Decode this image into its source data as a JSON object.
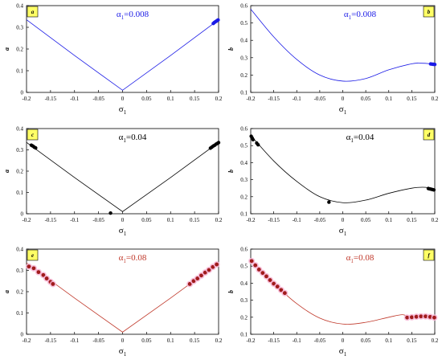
{
  "chart_data": [
    {
      "panel": "a",
      "type": "scatter",
      "annotation": {
        "symbol": "α",
        "sub": "1",
        "text": "=0.008"
      },
      "xlabel": {
        "symbol": "σ",
        "sub": "1"
      },
      "ylabel": "a",
      "xlim": [
        -0.2,
        0.2
      ],
      "ylim": [
        0,
        0.4
      ],
      "xticks": [
        -0.2,
        -0.15,
        -0.1,
        -0.05,
        0,
        0.05,
        0.1,
        0.15,
        0.2
      ],
      "yticks": [
        0,
        0.1,
        0.2,
        0.3,
        0.4
      ],
      "color": "#1a1ae6",
      "curve": {
        "x": [
          -0.2,
          -0.1,
          0,
          0.1,
          0.2
        ],
        "y": [
          0.335,
          0.17,
          0.01,
          0.17,
          0.335
        ]
      },
      "points": [
        {
          "x": 0.189,
          "y": 0.318
        },
        {
          "x": 0.191,
          "y": 0.322
        },
        {
          "x": 0.193,
          "y": 0.325
        },
        {
          "x": 0.195,
          "y": 0.328
        },
        {
          "x": 0.197,
          "y": 0.331
        },
        {
          "x": 0.199,
          "y": 0.334
        }
      ]
    },
    {
      "panel": "b",
      "type": "scatter",
      "annotation": {
        "symbol": "α",
        "sub": "1",
        "text": "=0.008"
      },
      "xlabel": {
        "symbol": "σ",
        "sub": "1"
      },
      "ylabel": "b",
      "xlim": [
        -0.2,
        0.2
      ],
      "ylim": [
        0.1,
        0.6
      ],
      "xticks": [
        -0.2,
        -0.15,
        -0.1,
        -0.05,
        0,
        0.05,
        0.1,
        0.15,
        0.2
      ],
      "yticks": [
        0.1,
        0.2,
        0.3,
        0.4,
        0.5,
        0.6
      ],
      "color": "#1a1ae6",
      "curve": {
        "x": [
          -0.2,
          -0.15,
          -0.1,
          -0.05,
          0,
          0.05,
          0.1,
          0.15,
          0.17,
          0.19,
          0.2
        ],
        "y": [
          0.58,
          0.42,
          0.29,
          0.2,
          0.165,
          0.18,
          0.23,
          0.265,
          0.268,
          0.265,
          0.26
        ]
      },
      "points": [
        {
          "x": 0.191,
          "y": 0.264
        },
        {
          "x": 0.194,
          "y": 0.263
        },
        {
          "x": 0.197,
          "y": 0.262
        },
        {
          "x": 0.2,
          "y": 0.261
        }
      ]
    },
    {
      "panel": "c",
      "type": "scatter",
      "annotation": {
        "symbol": "α",
        "sub": "1",
        "text": "=0.04"
      },
      "xlabel": {
        "symbol": "σ",
        "sub": "1"
      },
      "ylabel": "a",
      "xlim": [
        -0.2,
        0.2
      ],
      "ylim": [
        0,
        0.4
      ],
      "xticks": [
        -0.2,
        -0.15,
        -0.1,
        -0.05,
        0,
        0.05,
        0.1,
        0.15,
        0.2
      ],
      "yticks": [
        0,
        0.1,
        0.2,
        0.3,
        0.4
      ],
      "color": "#000000",
      "curve": {
        "x": [
          -0.2,
          -0.1,
          0,
          0.1,
          0.2
        ],
        "y": [
          0.335,
          0.17,
          0.01,
          0.17,
          0.335
        ]
      },
      "points": [
        {
          "x": -0.19,
          "y": 0.322
        },
        {
          "x": -0.187,
          "y": 0.318
        },
        {
          "x": -0.184,
          "y": 0.313
        },
        {
          "x": -0.181,
          "y": 0.309
        },
        {
          "x": 0.183,
          "y": 0.308
        },
        {
          "x": 0.186,
          "y": 0.313
        },
        {
          "x": 0.189,
          "y": 0.318
        },
        {
          "x": 0.192,
          "y": 0.322
        },
        {
          "x": 0.195,
          "y": 0.327
        },
        {
          "x": 0.198,
          "y": 0.331
        },
        {
          "x": 0.2,
          "y": 0.334
        },
        {
          "x": -0.025,
          "y": 0.003
        }
      ]
    },
    {
      "panel": "d",
      "type": "scatter",
      "annotation": {
        "symbol": "α",
        "sub": "1",
        "text": "=0.04"
      },
      "xlabel": {
        "symbol": "σ",
        "sub": "1"
      },
      "ylabel": "b",
      "xlim": [
        -0.2,
        0.2
      ],
      "ylim": [
        0.1,
        0.6
      ],
      "xticks": [
        -0.2,
        -0.15,
        -0.1,
        -0.05,
        0,
        0.05,
        0.1,
        0.15,
        0.2
      ],
      "yticks": [
        0.1,
        0.2,
        0.3,
        0.4,
        0.5,
        0.6
      ],
      "color": "#000000",
      "curve": {
        "x": [
          -0.2,
          -0.15,
          -0.1,
          -0.05,
          0,
          0.05,
          0.1,
          0.15,
          0.18,
          0.2
        ],
        "y": [
          0.56,
          0.41,
          0.29,
          0.2,
          0.165,
          0.18,
          0.22,
          0.25,
          0.255,
          0.24
        ]
      },
      "points": [
        {
          "x": -0.199,
          "y": 0.555
        },
        {
          "x": -0.197,
          "y": 0.545
        },
        {
          "x": -0.195,
          "y": 0.535
        },
        {
          "x": -0.187,
          "y": 0.515
        },
        {
          "x": -0.184,
          "y": 0.505
        },
        {
          "x": -0.03,
          "y": 0.168
        },
        {
          "x": 0.186,
          "y": 0.248
        },
        {
          "x": 0.189,
          "y": 0.246
        },
        {
          "x": 0.192,
          "y": 0.244
        },
        {
          "x": 0.195,
          "y": 0.242
        },
        {
          "x": 0.198,
          "y": 0.24
        }
      ]
    },
    {
      "panel": "e",
      "type": "scatter",
      "annotation": {
        "symbol": "α",
        "sub": "1",
        "text": "=0.08"
      },
      "xlabel": {
        "symbol": "σ",
        "sub": "1"
      },
      "ylabel": "a",
      "xlim": [
        -0.2,
        0.2
      ],
      "ylim": [
        0,
        0.4
      ],
      "xticks": [
        -0.2,
        -0.15,
        -0.1,
        -0.05,
        0,
        0.05,
        0.1,
        0.15,
        0.2
      ],
      "yticks": [
        0,
        0.1,
        0.2,
        0.3,
        0.4
      ],
      "color": "#c0392b",
      "curve": {
        "x": [
          -0.2,
          -0.1,
          0,
          0.1,
          0.2
        ],
        "y": [
          0.335,
          0.17,
          0.01,
          0.17,
          0.335
        ]
      },
      "points": [
        {
          "x": -0.195,
          "y": 0.318
        },
        {
          "x": -0.185,
          "y": 0.31
        },
        {
          "x": -0.175,
          "y": 0.292
        },
        {
          "x": -0.165,
          "y": 0.278
        },
        {
          "x": -0.158,
          "y": 0.262
        },
        {
          "x": -0.15,
          "y": 0.246
        },
        {
          "x": -0.145,
          "y": 0.236
        },
        {
          "x": 0.14,
          "y": 0.236
        },
        {
          "x": 0.148,
          "y": 0.25
        },
        {
          "x": 0.156,
          "y": 0.262
        },
        {
          "x": 0.164,
          "y": 0.276
        },
        {
          "x": 0.172,
          "y": 0.29
        },
        {
          "x": 0.18,
          "y": 0.302
        },
        {
          "x": 0.188,
          "y": 0.316
        },
        {
          "x": 0.196,
          "y": 0.328
        }
      ]
    },
    {
      "panel": "f",
      "type": "scatter",
      "annotation": {
        "symbol": "α",
        "sub": "1",
        "text": "=0.08"
      },
      "xlabel": {
        "symbol": "σ",
        "sub": "1"
      },
      "ylabel": "b",
      "xlim": [
        -0.2,
        0.2
      ],
      "ylim": [
        0.1,
        0.6
      ],
      "xticks": [
        -0.2,
        -0.15,
        -0.1,
        -0.05,
        0,
        0.05,
        0.1,
        0.15,
        0.2
      ],
      "yticks": [
        0.1,
        0.2,
        0.3,
        0.4,
        0.5,
        0.6
      ],
      "color": "#c0392b",
      "curve": {
        "x": [
          -0.2,
          -0.15,
          -0.1,
          -0.05,
          0,
          0.05,
          0.1,
          0.13,
          0.15,
          0.2
        ],
        "y": [
          0.54,
          0.4,
          0.28,
          0.195,
          0.16,
          0.17,
          0.2,
          0.215,
          0.2,
          0.2
        ]
      },
      "points": [
        {
          "x": -0.198,
          "y": 0.53
        },
        {
          "x": -0.19,
          "y": 0.505
        },
        {
          "x": -0.182,
          "y": 0.48
        },
        {
          "x": -0.174,
          "y": 0.46
        },
        {
          "x": -0.166,
          "y": 0.44
        },
        {
          "x": -0.158,
          "y": 0.418
        },
        {
          "x": -0.15,
          "y": 0.397
        },
        {
          "x": -0.142,
          "y": 0.38
        },
        {
          "x": -0.134,
          "y": 0.36
        },
        {
          "x": -0.126,
          "y": 0.342
        },
        {
          "x": 0.14,
          "y": 0.198
        },
        {
          "x": 0.15,
          "y": 0.2
        },
        {
          "x": 0.16,
          "y": 0.203
        },
        {
          "x": 0.17,
          "y": 0.205
        },
        {
          "x": 0.18,
          "y": 0.205
        },
        {
          "x": 0.19,
          "y": 0.202
        },
        {
          "x": 0.199,
          "y": 0.198
        }
      ]
    }
  ]
}
